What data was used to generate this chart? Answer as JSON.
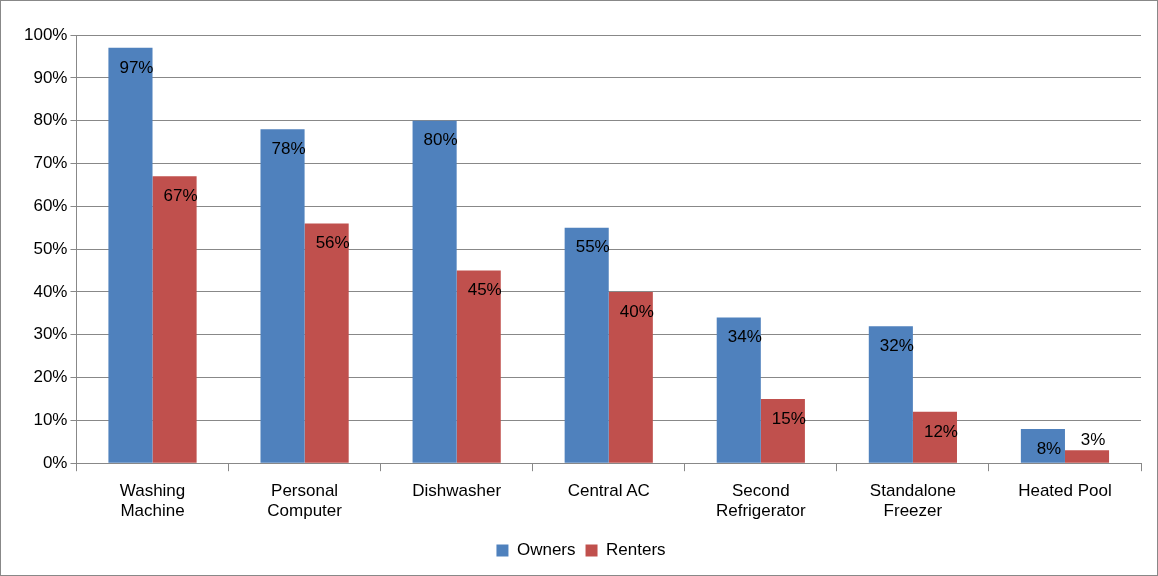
{
  "chart_data": {
    "type": "bar",
    "categories": [
      "Washing Machine",
      "Personal Computer",
      "Dishwasher",
      "Central AC",
      "Second Refrigerator",
      "Standalone Freezer",
      "Heated Pool"
    ],
    "series": [
      {
        "name": "Owners",
        "color": "#4f81bd",
        "values": [
          97,
          78,
          80,
          55,
          34,
          32,
          8
        ],
        "value_labels": [
          "97%",
          "78%",
          "80%",
          "55%",
          "34%",
          "32%",
          "8%"
        ]
      },
      {
        "name": "Renters",
        "color": "#c0504d",
        "values": [
          67,
          56,
          45,
          40,
          15,
          12,
          3
        ],
        "value_labels": [
          "67%",
          "56%",
          "45%",
          "40%",
          "15%",
          "12%",
          "3%"
        ]
      }
    ],
    "ylim": [
      0,
      100
    ],
    "yticks": [
      {
        "value": 0,
        "label": "0%"
      },
      {
        "value": 10,
        "label": "10%"
      },
      {
        "value": 20,
        "label": "20%"
      },
      {
        "value": 30,
        "label": "30%"
      },
      {
        "value": 40,
        "label": "40%"
      },
      {
        "value": 50,
        "label": "50%"
      },
      {
        "value": 60,
        "label": "60%"
      },
      {
        "value": 70,
        "label": "70%"
      },
      {
        "value": 80,
        "label": "80%"
      },
      {
        "value": 90,
        "label": "90%"
      },
      {
        "value": 100,
        "label": "100%"
      }
    ],
    "grid": "y",
    "legend": "bottom"
  }
}
